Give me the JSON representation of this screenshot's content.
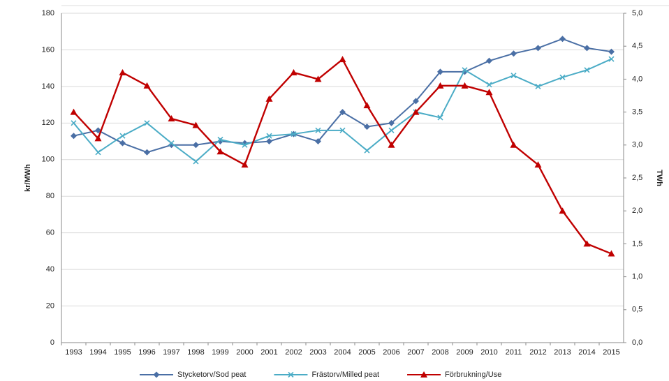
{
  "chart_data": {
    "type": "line",
    "categories": [
      "1993",
      "1994",
      "1995",
      "1996",
      "1997",
      "1998",
      "1999",
      "2000",
      "2001",
      "2002",
      "2003",
      "2004",
      "2005",
      "2006",
      "2007",
      "2008",
      "2009",
      "2010",
      "2011",
      "2012",
      "2013",
      "2014",
      "2015"
    ],
    "y_label": "kr/MWh",
    "y2_label": "TWh",
    "ylim": [
      0,
      180
    ],
    "yticks": [
      0,
      20,
      40,
      60,
      80,
      100,
      120,
      140,
      160,
      180
    ],
    "y2lim": [
      0,
      5
    ],
    "y2ticks": [
      {
        "value": 0,
        "label": "0,0"
      },
      {
        "value": 0.5,
        "label": "0,5"
      },
      {
        "value": 1,
        "label": "1,0"
      },
      {
        "value": 1.5,
        "label": "1,5"
      },
      {
        "value": 2,
        "label": "2,0"
      },
      {
        "value": 2.5,
        "label": "2,5"
      },
      {
        "value": 3,
        "label": "3,0"
      },
      {
        "value": 3.5,
        "label": "3,5"
      },
      {
        "value": 4,
        "label": "4,0"
      },
      {
        "value": 4.5,
        "label": "4,5"
      },
      {
        "value": 5,
        "label": "5,0"
      }
    ],
    "grid": true,
    "legend": "bottom",
    "series": [
      {
        "name": "Stycketorv/Sod peat",
        "color": "#4a6fa5",
        "marker": "diamond",
        "values": [
          113,
          116,
          109,
          104,
          108,
          108,
          110,
          109,
          110,
          114,
          110,
          126,
          118,
          120,
          132,
          148,
          148,
          154,
          158,
          161,
          166,
          161,
          159
        ]
      },
      {
        "name": "Frästorv/Milled peat",
        "color": "#4bacc6",
        "marker": "x",
        "values": [
          120,
          104,
          113,
          120,
          109,
          99,
          111,
          108,
          113,
          114,
          116,
          116,
          105,
          116,
          126,
          123,
          149,
          141,
          146,
          140,
          145,
          149,
          155
        ]
      },
      {
        "name": "Förbrukning/Use",
        "color": "#c00000",
        "marker": "triangle",
        "axis": "y2",
        "values": [
          3.5,
          3.1,
          4.1,
          3.9,
          3.4,
          3.3,
          2.9,
          2.7,
          3.7,
          4.1,
          4.0,
          4.3,
          3.6,
          3.0,
          3.5,
          3.9,
          3.9,
          3.8,
          3.0,
          2.7,
          2.0,
          1.5,
          1.35
        ]
      }
    ]
  }
}
